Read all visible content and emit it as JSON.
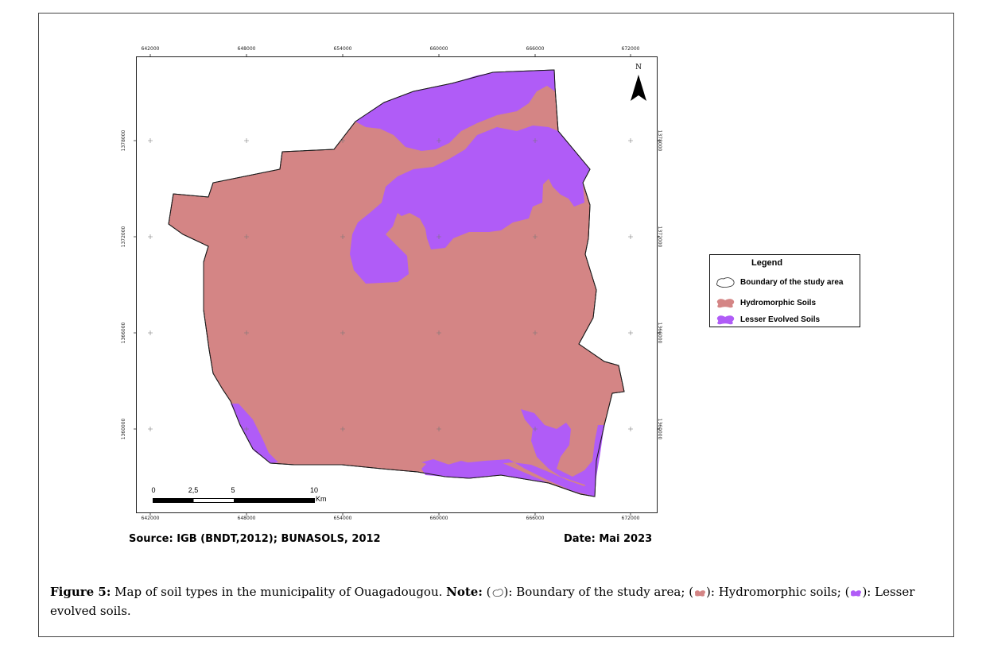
{
  "map": {
    "x_ticks": [
      "642000",
      "648000",
      "654000",
      "660000",
      "666000",
      "672000"
    ],
    "y_ticks": [
      "1378000",
      "1372000",
      "1366000",
      "1360000"
    ],
    "north_label": "N",
    "scale": {
      "labels": [
        "0",
        "2,5",
        "5",
        "10"
      ],
      "unit": "Km"
    },
    "colors": {
      "hydromorphic": "#d48585",
      "lesser_evolved": "#b05cf7",
      "boundary": "#1a1a1a"
    }
  },
  "legend": {
    "title": "Legend",
    "items": [
      {
        "label": "Boundary of the study area",
        "icon": "boundary-outline-icon"
      },
      {
        "label": "Hydromorphic Soils",
        "icon": "hydromorphic-swatch-icon"
      },
      {
        "label": "Lesser Evolved Soils",
        "icon": "lesser-evolved-swatch-icon"
      }
    ]
  },
  "footer": {
    "source": "Source: IGB (BNDT,2012); BUNASOLS, 2012",
    "date": "Date: Mai 2023"
  },
  "caption": {
    "figure_label": "Figure 5:",
    "figure_text": " Map of soil types in the municipality of Ouagadougou. ",
    "note_label": "Note:",
    "part1_open": " (",
    "part1_text": "): Boundary of the study area; (",
    "part2_text": "): Hydromorphic soils; (",
    "part3_text": "): Lesser evolved soils."
  }
}
